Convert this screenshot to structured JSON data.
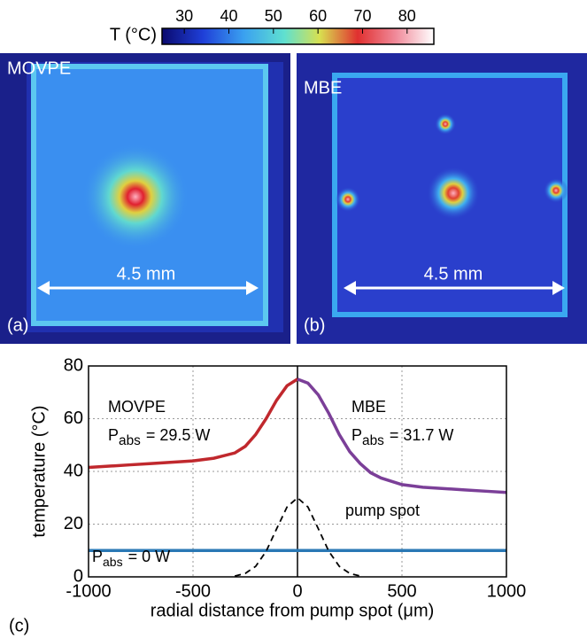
{
  "colorbar": {
    "label": "T (°C)",
    "lim": [
      25,
      86
    ],
    "ticks": [
      30,
      40,
      50,
      60,
      70,
      80
    ]
  },
  "images": [
    {
      "name": "MOVPE",
      "scale": "4.5 mm",
      "panel": "(a)"
    },
    {
      "name": "MBE",
      "scale": "4.5 mm",
      "panel": "(b)"
    }
  ],
  "chart_data": {
    "type": "line",
    "panel": "(c)",
    "x_label": "radial distance from pump spot (μm)",
    "y_label": "temperature (°C)",
    "xlim": [
      -1000,
      1000
    ],
    "xticks": [
      -1000,
      -500,
      0,
      500,
      1000
    ],
    "ylim": [
      0,
      80
    ],
    "yticks": [
      0,
      20,
      40,
      60,
      80
    ],
    "grid": true,
    "vline": 0,
    "series": [
      {
        "name": "MOVPE",
        "color": "#c0282d",
        "power": {
          "symbol": "P",
          "sub": "abs",
          "text": "= 29.5 W"
        },
        "x": [
          -1000,
          -900,
          -800,
          -700,
          -600,
          -500,
          -400,
          -300,
          -250,
          -200,
          -150,
          -100,
          -50,
          0
        ],
        "values": [
          41.5,
          42,
          42.5,
          43,
          43.5,
          44,
          45,
          47,
          49.5,
          54,
          60,
          67,
          72.5,
          75
        ]
      },
      {
        "name": "MBE",
        "color": "#7b3f98",
        "power": {
          "symbol": "P",
          "sub": "abs",
          "text": "= 31.7 W"
        },
        "x": [
          0,
          50,
          100,
          150,
          200,
          250,
          300,
          350,
          400,
          500,
          600,
          700,
          800,
          900,
          1000
        ],
        "values": [
          75,
          73.5,
          69,
          62,
          54,
          47.5,
          43,
          39.5,
          37.5,
          35,
          34,
          33.5,
          33,
          32.5,
          32
        ]
      },
      {
        "color": "#2a78b5",
        "power": {
          "symbol": "P",
          "sub": "abs",
          "text": "= 0 W"
        },
        "x": [
          -1000,
          1000
        ],
        "values": [
          10,
          10
        ]
      },
      {
        "name": "pump spot",
        "color": "#000000",
        "dashed": true,
        "x": [
          -300,
          -250,
          -200,
          -150,
          -100,
          -50,
          0,
          50,
          100,
          150,
          200,
          250,
          300
        ],
        "values": [
          0.3,
          1.3,
          4,
          9.7,
          18.2,
          26.5,
          30,
          26.5,
          18.2,
          9.7,
          4,
          1.3,
          0.3
        ]
      }
    ]
  }
}
